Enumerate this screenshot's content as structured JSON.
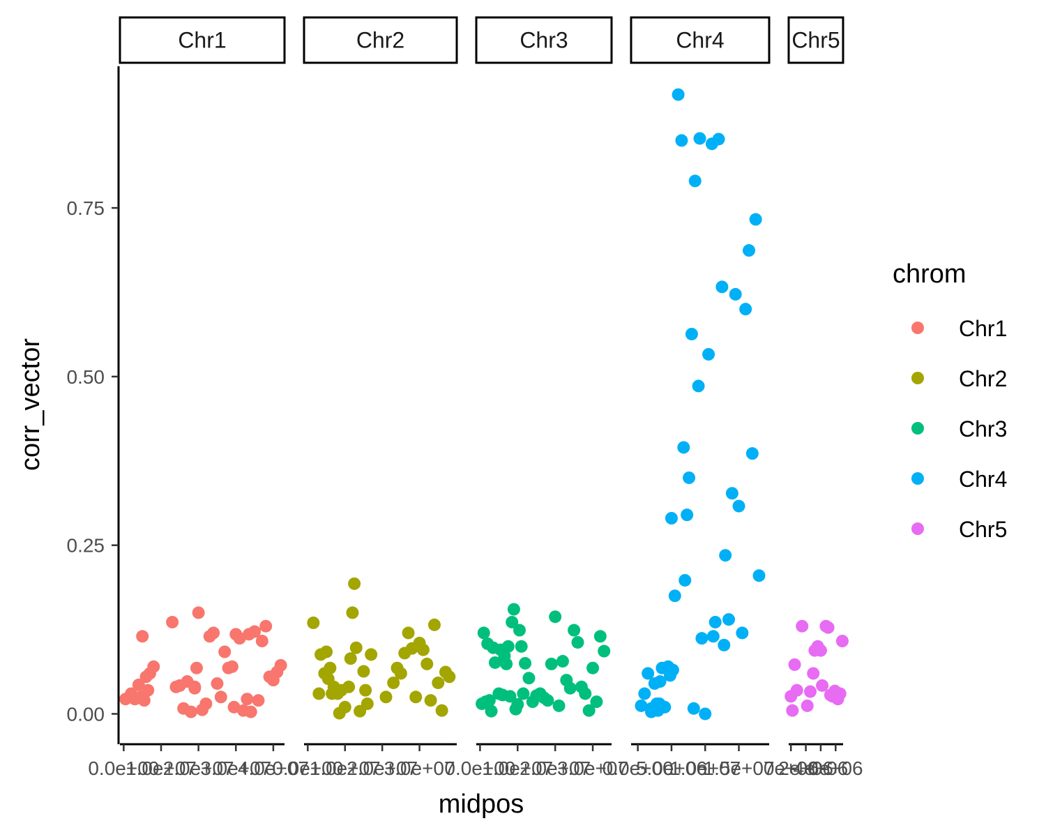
{
  "chart_data": {
    "type": "scatter",
    "title": "",
    "xlabel": "midpos",
    "ylabel": "corr_vector",
    "ylim": [
      -0.045,
      0.96
    ],
    "y_ticks": [
      0.0,
      0.25,
      0.5,
      0.75
    ],
    "y_tick_labels": [
      "0.00",
      "0.25",
      "0.50",
      "0.75"
    ],
    "grid": false,
    "facet_by": "chrom",
    "legend": {
      "title": "chrom",
      "position": "right",
      "entries": [
        "Chr1",
        "Chr2",
        "Chr3",
        "Chr4",
        "Chr5"
      ]
    },
    "panels": [
      {
        "name": "Chr1",
        "color": "#F8766D",
        "xlim": [
          -1000000,
          43000000
        ],
        "x_ticks": [
          0,
          10000000,
          20000000,
          30000000,
          40000000
        ],
        "x_tick_labels": [
          "0.0e+00",
          "1.0e+07",
          "2.0e+07",
          "3.0e+07",
          "4.0e+07"
        ],
        "x": [
          500000,
          2000000,
          3000000,
          4000000,
          4500000,
          5000000,
          5500000,
          6000000,
          6500000,
          7000000,
          8000000,
          13000000,
          14000000,
          15000000,
          16000000,
          17000000,
          18000000,
          19000000,
          19500000,
          20000000,
          21000000,
          22000000,
          23000000,
          24000000,
          25000000,
          26000000,
          27000000,
          28000000,
          29000000,
          30000000,
          31000000,
          32000000,
          33000000,
          33500000,
          34000000,
          35000000,
          36000000,
          37000000,
          38000000,
          39000000,
          40000000,
          41000000,
          42000000,
          19000000,
          29500000
        ],
        "y": [
          0.022,
          0.03,
          0.022,
          0.043,
          0.025,
          0.115,
          0.02,
          0.055,
          0.035,
          0.06,
          0.07,
          0.136,
          0.04,
          0.042,
          0.008,
          0.048,
          0.003,
          0.04,
          0.068,
          0.15,
          0.006,
          0.015,
          0.115,
          0.12,
          0.045,
          0.025,
          0.092,
          0.068,
          0.07,
          0.118,
          0.112,
          0.005,
          0.022,
          0.118,
          0.003,
          0.122,
          0.02,
          0.108,
          0.13,
          0.055,
          0.05,
          0.062,
          0.072,
          0.038,
          0.01
        ]
      },
      {
        "name": "Chr2",
        "color": "#A3A500",
        "xlim": [
          -1000000,
          40000000
        ],
        "x_ticks": [
          0,
          10000000,
          20000000,
          30000000
        ],
        "x_tick_labels": [
          "0.0e+00",
          "1.0e+07",
          "2.0e+07",
          "3.0e+07"
        ],
        "x": [
          1500000,
          3000000,
          3500000,
          4500000,
          5000000,
          5500000,
          6000000,
          6500000,
          7000000,
          8000000,
          8500000,
          9000000,
          10000000,
          11000000,
          11500000,
          12000000,
          12500000,
          13000000,
          14000000,
          15000000,
          15500000,
          16000000,
          17000000,
          21000000,
          23000000,
          24000000,
          25000000,
          26000000,
          27000000,
          28000000,
          29000000,
          30000000,
          31000000,
          32000000,
          33000000,
          34000000,
          35000000,
          36000000,
          37000000,
          38000000
        ],
        "y": [
          0.135,
          0.03,
          0.088,
          0.06,
          0.092,
          0.052,
          0.068,
          0.03,
          0.04,
          0.03,
          0.001,
          0.035,
          0.01,
          0.04,
          0.082,
          0.15,
          0.193,
          0.098,
          0.004,
          0.063,
          0.035,
          0.015,
          0.088,
          0.025,
          0.046,
          0.068,
          0.06,
          0.09,
          0.12,
          0.097,
          0.025,
          0.105,
          0.095,
          0.074,
          0.02,
          0.132,
          0.046,
          0.005,
          0.062,
          0.055
        ]
      },
      {
        "name": "Chr3",
        "color": "#00BF7D",
        "xlim": [
          -1000000,
          35000000
        ],
        "x_ticks": [
          0,
          10000000,
          20000000,
          30000000
        ],
        "x_tick_labels": [
          "0.0e+00",
          "1.0e+07",
          "2.0e+07",
          "3.0e+07"
        ],
        "x": [
          500000,
          1000000,
          1500000,
          2000000,
          2500000,
          3000000,
          3500000,
          4000000,
          5000000,
          5500000,
          6000000,
          6500000,
          7000000,
          7500000,
          8000000,
          8500000,
          9000000,
          9500000,
          10000000,
          10500000,
          11000000,
          11500000,
          12000000,
          13000000,
          14000000,
          15000000,
          16000000,
          17000000,
          18000000,
          19000000,
          20000000,
          21000000,
          22000000,
          23000000,
          24000000,
          25000000,
          26000000,
          27000000,
          28000000,
          29000000,
          30000000,
          31000000,
          32000000,
          33000000
        ],
        "y": [
          0.015,
          0.12,
          0.018,
          0.104,
          0.02,
          0.004,
          0.098,
          0.076,
          0.03,
          0.095,
          0.028,
          0.086,
          0.074,
          0.1,
          0.026,
          0.136,
          0.155,
          0.007,
          0.014,
          0.124,
          0.1,
          0.03,
          0.075,
          0.053,
          0.018,
          0.027,
          0.03,
          0.024,
          0.02,
          0.074,
          0.144,
          0.012,
          0.078,
          0.05,
          0.038,
          0.124,
          0.106,
          0.04,
          0.03,
          0.005,
          0.068,
          0.018,
          0.115,
          0.093
        ]
      },
      {
        "name": "Chr4",
        "color": "#00B0F6",
        "xlim": [
          -1000000,
          19500000
        ],
        "x_ticks": [
          0,
          5000000,
          10000000,
          15000000
        ],
        "x_tick_labels": [
          "0.0e+00",
          "5.0e+06",
          "1.0e+07",
          "1.5e+07"
        ],
        "x": [
          500000,
          1000000,
          1500000,
          2000000,
          2500000,
          2800000,
          3000000,
          3300000,
          3600000,
          4000000,
          4500000,
          5000000,
          5500000,
          6000000,
          6500000,
          6800000,
          7000000,
          7300000,
          7600000,
          8000000,
          8500000,
          9000000,
          9500000,
          10000000,
          10500000,
          11000000,
          11500000,
          12000000,
          12500000,
          13000000,
          13500000,
          14000000,
          14500000,
          15000000,
          15500000,
          16000000,
          16500000,
          17000000,
          17500000,
          18000000,
          2000000,
          3200000,
          4800000,
          5200000,
          8300000,
          9200000,
          11200000,
          12800000
        ],
        "y": [
          0.012,
          0.03,
          0.06,
          0.008,
          0.045,
          0.015,
          0.005,
          0.048,
          0.068,
          0.01,
          0.07,
          0.29,
          0.175,
          0.918,
          0.85,
          0.395,
          0.198,
          0.295,
          0.35,
          0.563,
          0.79,
          0.486,
          0.112,
          0.0,
          0.533,
          0.845,
          0.136,
          0.852,
          0.633,
          0.235,
          0.14,
          0.327,
          0.622,
          0.308,
          0.12,
          0.6,
          0.687,
          0.386,
          0.733,
          0.205,
          0.003,
          0.015,
          0.057,
          0.065,
          0.008,
          0.853,
          0.115,
          0.102
        ]
      },
      {
        "name": "Chr5",
        "color": "#E76BF3",
        "xlim": [
          -300000,
          7000000
        ],
        "x_ticks": [
          0,
          2000000,
          4000000,
          6000000
        ],
        "x_tick_labels": [
          "0e+00",
          "2e+06",
          "4e+06",
          "6e+06"
        ],
        "x": [
          0,
          200000,
          500000,
          800000,
          1500000,
          2200000,
          2600000,
          3000000,
          3200000,
          3600000,
          4000000,
          4200000,
          4700000,
          5000000,
          5300000,
          5600000,
          5900000,
          6300000,
          6600000,
          6900000
        ],
        "y": [
          0.026,
          0.005,
          0.073,
          0.035,
          0.13,
          0.012,
          0.033,
          0.06,
          0.094,
          0.1,
          0.094,
          0.042,
          0.13,
          0.128,
          0.028,
          0.026,
          0.034,
          0.022,
          0.03,
          0.108
        ]
      }
    ]
  }
}
